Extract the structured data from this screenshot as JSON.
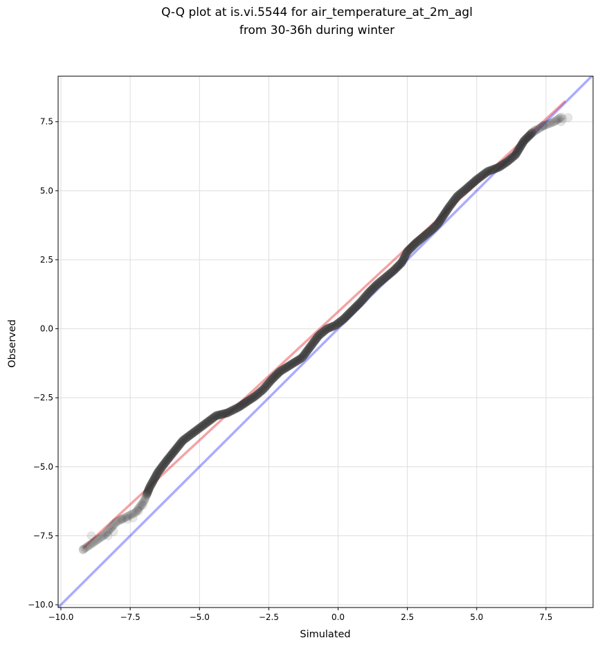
{
  "chart_data": {
    "type": "scatter",
    "title": "Q-Q plot at is.vi.5544 for air_temperature_at_2m_agl",
    "subtitle": "from 30-36h during winter",
    "xlabel": "Simulated",
    "ylabel": "Observed",
    "xlim": [
      -10.1,
      9.2
    ],
    "ylim": [
      -10.1,
      9.15
    ],
    "x_ticks": [
      -10.0,
      -7.5,
      -5.0,
      -2.5,
      0.0,
      2.5,
      5.0,
      7.5
    ],
    "y_ticks": [
      -10.0,
      -7.5,
      -5.0,
      -2.5,
      0.0,
      2.5,
      5.0,
      7.5
    ],
    "x_tick_labels": [
      "−10.0",
      "−7.5",
      "−5.0",
      "−2.5",
      "0.0",
      "2.5",
      "5.0",
      "7.5"
    ],
    "y_tick_labels": [
      "−10.0",
      "−7.5",
      "−5.0",
      "−2.5",
      "0.0",
      "2.5",
      "5.0",
      "7.5"
    ],
    "grid": true,
    "colors": {
      "points": "#333333",
      "identity_line": "#0000ff",
      "fit_line": "#e41a1c",
      "grid": "#dddddd"
    },
    "identity_line": {
      "from": [
        -10.1,
        -10.1
      ],
      "to": [
        9.2,
        9.2
      ]
    },
    "fit_line": {
      "from": [
        -9.2,
        -7.95
      ],
      "to": [
        8.2,
        8.25
      ]
    },
    "quantile_curve": [
      [
        -9.2,
        -8.0
      ],
      [
        -8.4,
        -7.45
      ],
      [
        -8.0,
        -7.0
      ],
      [
        -7.6,
        -6.8
      ],
      [
        -7.3,
        -6.65
      ],
      [
        -7.0,
        -6.25
      ],
      [
        -6.8,
        -5.75
      ],
      [
        -6.5,
        -5.2
      ],
      [
        -6.2,
        -4.8
      ],
      [
        -6.0,
        -4.55
      ],
      [
        -5.6,
        -4.05
      ],
      [
        -5.2,
        -3.75
      ],
      [
        -4.8,
        -3.45
      ],
      [
        -4.4,
        -3.15
      ],
      [
        -4.0,
        -3.05
      ],
      [
        -3.6,
        -2.85
      ],
      [
        -3.3,
        -2.65
      ],
      [
        -3.0,
        -2.45
      ],
      [
        -2.7,
        -2.2
      ],
      [
        -2.4,
        -1.85
      ],
      [
        -2.1,
        -1.55
      ],
      [
        -1.7,
        -1.3
      ],
      [
        -1.3,
        -1.05
      ],
      [
        -1.0,
        -0.65
      ],
      [
        -0.7,
        -0.25
      ],
      [
        -0.4,
        0.0
      ],
      [
        -0.1,
        0.12
      ],
      [
        0.2,
        0.35
      ],
      [
        0.5,
        0.65
      ],
      [
        0.8,
        0.95
      ],
      [
        1.1,
        1.3
      ],
      [
        1.4,
        1.6
      ],
      [
        1.7,
        1.85
      ],
      [
        2.0,
        2.1
      ],
      [
        2.3,
        2.4
      ],
      [
        2.5,
        2.8
      ],
      [
        2.8,
        3.1
      ],
      [
        3.1,
        3.35
      ],
      [
        3.4,
        3.6
      ],
      [
        3.6,
        3.8
      ],
      [
        3.8,
        4.1
      ],
      [
        4.0,
        4.4
      ],
      [
        4.3,
        4.8
      ],
      [
        4.6,
        5.05
      ],
      [
        5.0,
        5.4
      ],
      [
        5.4,
        5.7
      ],
      [
        5.8,
        5.85
      ],
      [
        6.1,
        6.05
      ],
      [
        6.4,
        6.3
      ],
      [
        6.7,
        6.8
      ],
      [
        7.0,
        7.1
      ],
      [
        7.4,
        7.35
      ],
      [
        7.8,
        7.5
      ],
      [
        8.1,
        7.7
      ]
    ],
    "sparse_points": [
      [
        -9.2,
        -8.0
      ],
      [
        -8.9,
        -7.5
      ],
      [
        -8.3,
        -7.5
      ],
      [
        -8.1,
        -7.35
      ],
      [
        -7.8,
        -6.9
      ],
      [
        -7.6,
        -6.9
      ],
      [
        -7.4,
        -6.85
      ],
      [
        -7.2,
        -6.6
      ],
      [
        -7.05,
        -6.4
      ],
      [
        7.1,
        7.2
      ],
      [
        7.4,
        7.35
      ],
      [
        8.05,
        7.5
      ],
      [
        8.1,
        7.6
      ],
      [
        8.3,
        7.65
      ]
    ]
  }
}
